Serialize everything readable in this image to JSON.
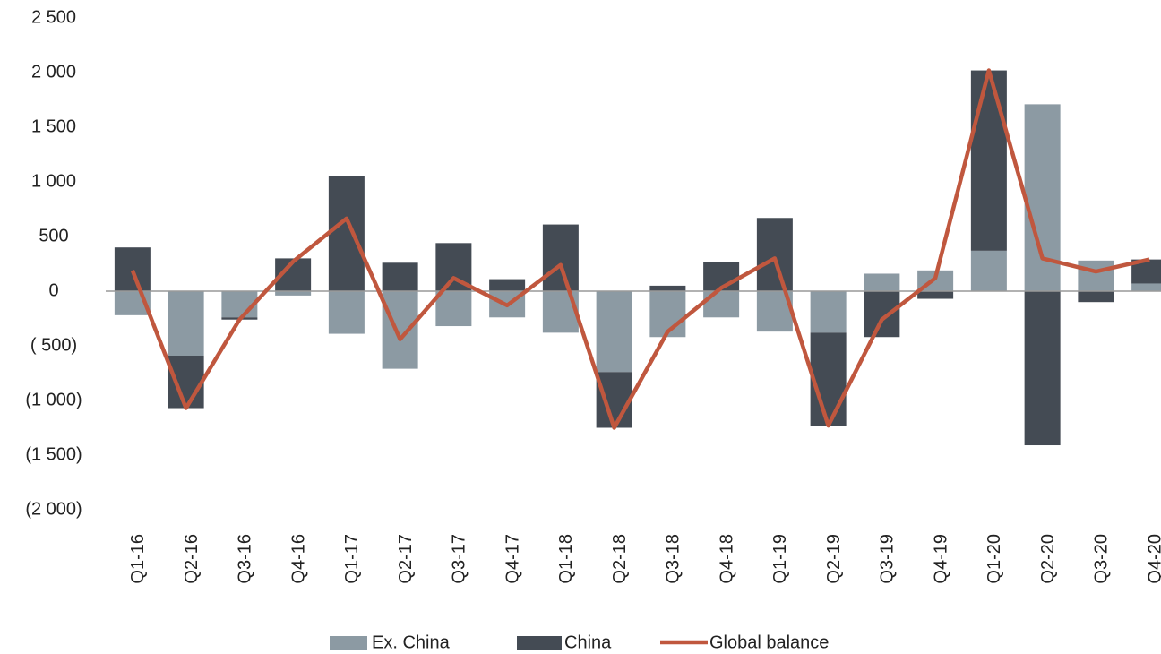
{
  "chart_data": {
    "type": "bar",
    "categories": [
      "Q1-16",
      "Q2-16",
      "Q3-16",
      "Q4-16",
      "Q1-17",
      "Q2-17",
      "Q3-17",
      "Q4-17",
      "Q1-18",
      "Q2-18",
      "Q3-18",
      "Q4-18",
      "Q1-19",
      "Q2-19",
      "Q3-19",
      "Q4-19",
      "Q1-20",
      "Q2-20",
      "Q3-20",
      "Q4-20"
    ],
    "series": [
      {
        "name": "Ex. China",
        "type": "bar",
        "color": "#8c9aa3",
        "values": [
          -220,
          -590,
          -240,
          -40,
          -390,
          -710,
          -320,
          -240,
          -380,
          -740,
          -420,
          -240,
          -370,
          -380,
          160,
          190,
          370,
          1710,
          280,
          70
        ]
      },
      {
        "name": "China",
        "type": "bar",
        "color": "#444b54",
        "values": [
          400,
          -480,
          -20,
          300,
          1050,
          260,
          440,
          110,
          610,
          -510,
          50,
          270,
          670,
          -850,
          -420,
          -70,
          1650,
          -1410,
          -100,
          220
        ]
      },
      {
        "name": "Global balance",
        "type": "line",
        "color": "#c0573e",
        "values": [
          190,
          -1070,
          -260,
          270,
          665,
          -440,
          120,
          -130,
          240,
          -1250,
          -370,
          30,
          300,
          -1230,
          -260,
          120,
          2020,
          300,
          180,
          290
        ]
      }
    ],
    "ylim": [
      -2000,
      2500
    ],
    "yticks": [
      {
        "value": -2000,
        "label": "(2 000)"
      },
      {
        "value": -1500,
        "label": "(1 500)"
      },
      {
        "value": -1000,
        "label": "(1 000)"
      },
      {
        "value": -500,
        "label": "( 500)"
      },
      0,
      500,
      {
        "value": 1000,
        "label": "1 000"
      },
      {
        "value": 1500,
        "label": "1 500"
      },
      {
        "value": 2000,
        "label": "2 000"
      },
      {
        "value": 2500,
        "label": "2 500"
      }
    ],
    "legend": "bottom"
  }
}
